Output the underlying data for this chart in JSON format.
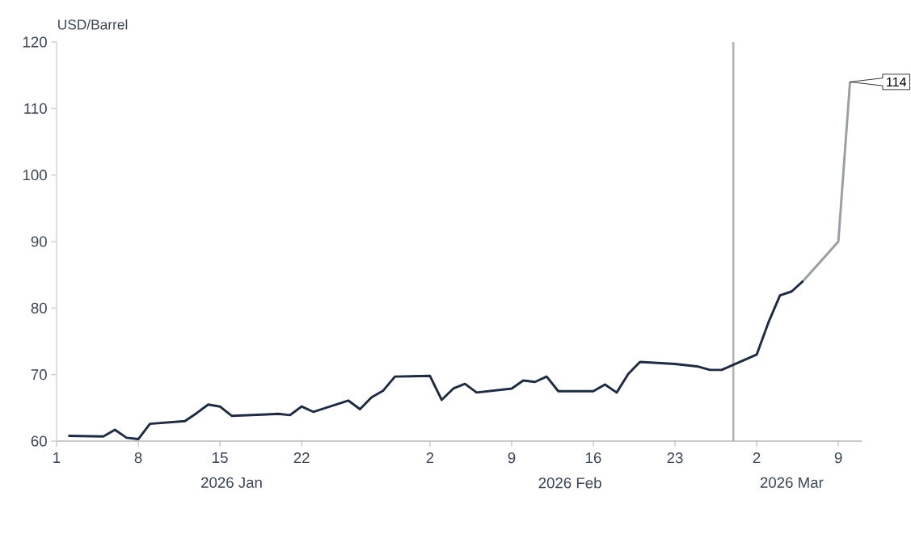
{
  "chart_data": {
    "type": "line",
    "ylabel": "USD/Barrel",
    "xlim": [
      "2026-01-01",
      "2026-03-11"
    ],
    "xticks": [
      {
        "value": "2026-01-01",
        "label": "1"
      },
      {
        "value": "2026-01-08",
        "label": "8"
      },
      {
        "value": "2026-01-15",
        "label": "15"
      },
      {
        "value": "2026-01-22",
        "label": "22"
      },
      {
        "value": "2026-02-02",
        "label": "2"
      },
      {
        "value": "2026-02-09",
        "label": "9"
      },
      {
        "value": "2026-02-16",
        "label": "16"
      },
      {
        "value": "2026-02-23",
        "label": "23"
      },
      {
        "value": "2026-03-02",
        "label": "2"
      },
      {
        "value": "2026-03-09",
        "label": "9"
      }
    ],
    "ylim": [
      60,
      120
    ],
    "yticks": [
      60,
      70,
      80,
      90,
      100,
      110,
      120
    ],
    "x2lim": [
      "2026-01-01",
      "2026-03-11"
    ],
    "x2ticks": [
      {
        "value": "2026-01-16",
        "label": "2026 Jan"
      },
      {
        "value": "2026-02-14",
        "label": "2026 Feb"
      },
      {
        "value": "2026-03-05",
        "label": "2026 Mar"
      }
    ],
    "grid": false,
    "marker": "none",
    "line_style": "solid",
    "series": [
      {
        "color": "#1e2b41",
        "x": [
          "2026-01-02",
          "2026-01-05",
          "2026-01-06",
          "2026-01-07",
          "2026-01-08",
          "2026-01-09",
          "2026-01-12",
          "2026-01-13",
          "2026-01-14",
          "2026-01-15",
          "2026-01-16",
          "2026-01-19",
          "2026-01-20",
          "2026-01-21",
          "2026-01-22",
          "2026-01-23",
          "2026-01-26",
          "2026-01-27",
          "2026-01-28",
          "2026-01-29",
          "2026-01-30",
          "2026-02-02",
          "2026-02-03",
          "2026-02-04",
          "2026-02-05",
          "2026-02-06",
          "2026-02-09",
          "2026-02-10",
          "2026-02-11",
          "2026-02-12",
          "2026-02-13",
          "2026-02-16",
          "2026-02-17",
          "2026-02-18",
          "2026-02-19",
          "2026-02-20",
          "2026-02-23",
          "2026-02-24",
          "2026-02-25",
          "2026-02-26",
          "2026-02-27",
          "2026-03-02",
          "2026-03-03",
          "2026-03-04",
          "2026-03-05",
          "2026-03-06"
        ],
        "values": [
          60.8,
          60.7,
          61.7,
          60.5,
          60.3,
          62.6,
          63.0,
          64.2,
          65.5,
          65.2,
          63.8,
          64.0,
          64.1,
          63.9,
          65.2,
          64.4,
          66.1,
          64.8,
          66.6,
          67.6,
          69.7,
          69.8,
          66.2,
          67.9,
          68.6,
          67.3,
          67.9,
          69.1,
          68.9,
          69.7,
          67.5,
          67.5,
          68.5,
          67.3,
          70.1,
          71.9,
          71.6,
          71.4,
          71.2,
          70.7,
          70.7,
          73.0,
          77.8,
          81.9,
          82.5,
          84.1
        ]
      },
      {
        "color": "#9a9ea6",
        "x": [
          "2026-03-06",
          "2026-03-09",
          "2026-03-10"
        ],
        "values": [
          84.1,
          90.0,
          114
        ]
      }
    ],
    "ref_lines": [
      {
        "axis": "x",
        "value": "2026-02-28",
        "color": "#b4b4b4",
        "line_style": "solid"
      }
    ],
    "annotations": [
      {
        "text": "114",
        "x": "2026-03-10",
        "y": 114
      }
    ]
  }
}
